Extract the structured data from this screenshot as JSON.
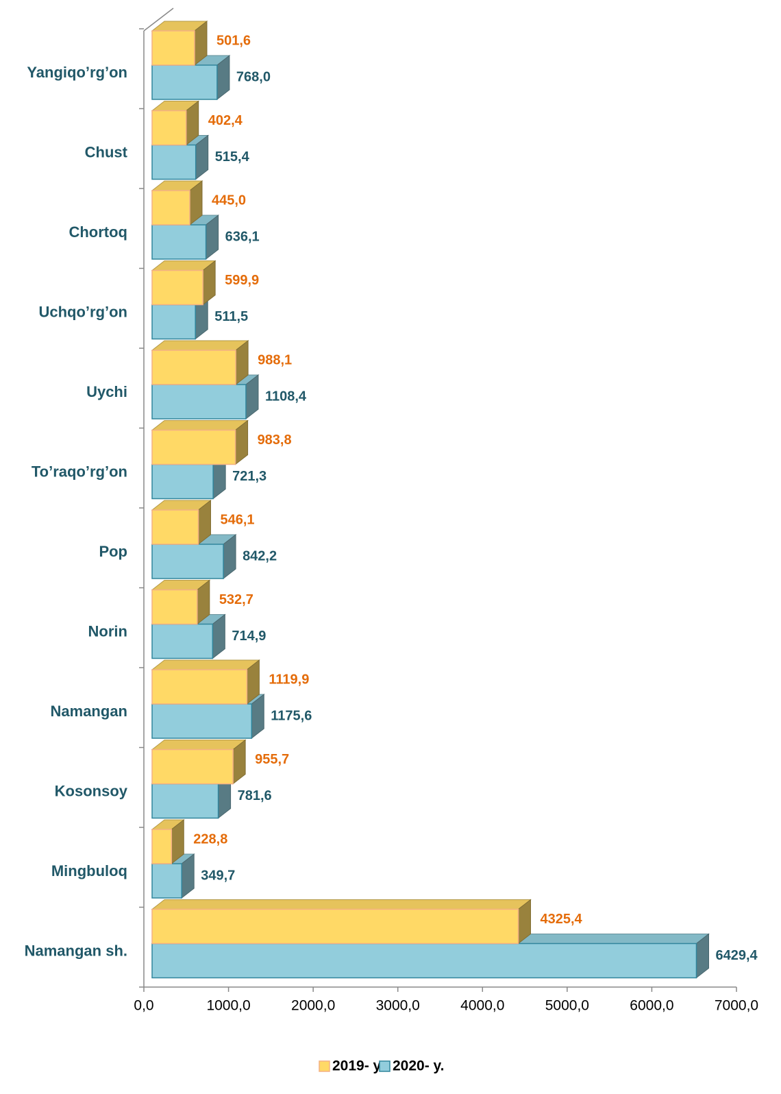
{
  "chart_data": {
    "type": "bar3d_horizontal",
    "categories": [
      "Yangiqo’rg’on",
      "Chust",
      "Chortoq",
      "Uchqo’rg’on",
      "Uychi",
      "To’raqo’rg’on",
      "Pop",
      "Norin",
      "Namangan",
      "Kosonsoy",
      "Mingbuloq",
      "Namangan sh."
    ],
    "series": [
      {
        "name": "2019- y.",
        "color": "#FFD966",
        "values": [
          501.6,
          402.4,
          445.0,
          599.9,
          988.1,
          983.8,
          546.1,
          532.7,
          1119.9,
          955.7,
          228.8,
          4325.4
        ],
        "value_labels": [
          "501,6",
          "402,4",
          "445,0",
          "599,9",
          "988,1",
          "983,8",
          "546,1",
          "532,7",
          "1119,9",
          "955,7",
          "228,8",
          "4325,4"
        ]
      },
      {
        "name": "2020- y.",
        "color": "#92CDDC",
        "values": [
          768.0,
          515.4,
          636.1,
          511.5,
          1108.4,
          721.3,
          842.2,
          714.9,
          1175.6,
          781.6,
          349.7,
          6429.4
        ],
        "value_labels": [
          "768,0",
          "515,4",
          "636,1",
          "511,5",
          "1108,4",
          "721,3",
          "842,2",
          "714,9",
          "1175,6",
          "781,6",
          "349,7",
          "6429,4"
        ]
      }
    ],
    "xlim": [
      0,
      7000
    ],
    "xticks": [
      {
        "value": 0,
        "label": "0,0"
      },
      {
        "value": 1000,
        "label": "1000,0"
      },
      {
        "value": 2000,
        "label": "2000,0"
      },
      {
        "value": 3000,
        "label": "3000,0"
      },
      {
        "value": 4000,
        "label": "4000,0"
      },
      {
        "value": 5000,
        "label": "5000,0"
      },
      {
        "value": 6000,
        "label": "6000,0"
      },
      {
        "value": 7000,
        "label": "7000,0"
      }
    ],
    "legend": "bottom"
  }
}
